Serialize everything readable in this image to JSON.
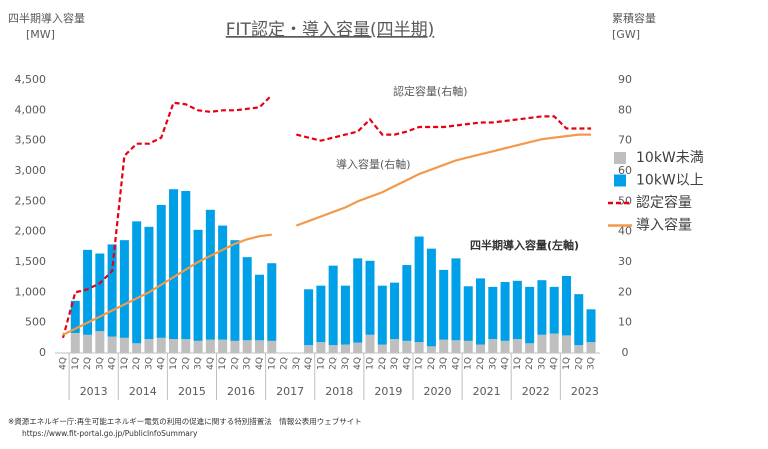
{
  "chart_data": {
    "type": "bar-line",
    "title": "FIT認定・導入容量(四半期)",
    "y_label": [
      "四半期導入容量",
      "[MW]"
    ],
    "y2_label": [
      "累積容量",
      "[GW]"
    ],
    "categories": [
      "4Q",
      "1Q",
      "2Q",
      "3Q",
      "4Q",
      "1Q",
      "2Q",
      "3Q",
      "4Q",
      "1Q",
      "2Q",
      "3Q",
      "4Q",
      "1Q",
      "2Q",
      "3Q",
      "4Q",
      "1Q",
      "2Q",
      "3Q",
      "4Q",
      "1Q",
      "2Q",
      "3Q",
      "4Q",
      "1Q",
      "2Q",
      "3Q",
      "4Q",
      "1Q",
      "2Q",
      "3Q",
      "4Q",
      "1Q",
      "2Q",
      "3Q",
      "4Q",
      "1Q",
      "2Q",
      "3Q",
      "4Q",
      "1Q",
      "2Q",
      "3Q"
    ],
    "years": [
      "2013",
      "2014",
      "2015",
      "2016",
      "2017",
      "2018",
      "2019",
      "2020",
      "2021",
      "2022",
      "2023"
    ],
    "ylim": [
      0,
      4500
    ],
    "yticks": [
      0,
      500,
      {
        "value": 1000,
        "label": "1,000"
      },
      {
        "value": 1500,
        "label": "1,500"
      },
      {
        "value": 2000,
        "label": "2,000"
      },
      {
        "value": 2500,
        "label": "2,500"
      },
      {
        "value": 3000,
        "label": "3,000"
      },
      {
        "value": 3500,
        "label": "3,500"
      },
      {
        "value": 4000,
        "label": "4,000"
      },
      {
        "value": 4500,
        "label": "4,500"
      }
    ],
    "y2lim": [
      0,
      90
    ],
    "y2ticks": [
      0,
      10,
      20,
      30,
      40,
      50,
      60,
      70,
      80,
      90
    ],
    "series": [
      {
        "name": "10kW未満",
        "kind": "bar",
        "color": "#bfbfbf",
        "values": [
          null,
          330,
          300,
          360,
          270,
          250,
          160,
          230,
          250,
          230,
          230,
          200,
          220,
          220,
          200,
          210,
          210,
          200,
          null,
          null,
          130,
          180,
          130,
          140,
          170,
          300,
          140,
          230,
          200,
          180,
          110,
          220,
          210,
          200,
          140,
          230,
          200,
          230,
          160,
          300,
          320,
          290,
          130,
          180
        ]
      },
      {
        "name": "10kW以上",
        "kind": "bar",
        "color": "#00a0e9",
        "values": [
          null,
          530,
          1400,
          1280,
          1520,
          1610,
          2010,
          1850,
          2190,
          2470,
          2440,
          1830,
          2140,
          1880,
          1660,
          1370,
          1080,
          1280,
          null,
          null,
          920,
          930,
          1310,
          970,
          1390,
          1220,
          970,
          930,
          1250,
          1740,
          1610,
          1150,
          1350,
          900,
          1090,
          860,
          970,
          960,
          930,
          900,
          770,
          980,
          840,
          540
        ]
      },
      {
        "name": "認定容量",
        "kind": "line",
        "dashed": true,
        "axis": "y2",
        "color": "#e60012",
        "values": [
          5,
          20,
          21,
          23,
          27,
          65,
          69,
          69,
          71,
          82.5,
          82,
          80,
          79.5,
          80,
          80,
          80.5,
          81,
          85,
          null,
          72,
          71,
          70,
          71,
          72,
          73,
          77,
          72,
          72,
          73,
          74.5,
          74.5,
          74.5,
          75,
          75.5,
          76,
          76,
          76.5,
          77,
          77.5,
          78,
          78,
          74,
          74,
          74
        ]
      },
      {
        "name": "導入容量",
        "kind": "line",
        "axis": "y2",
        "color": "#f29a4a",
        "values": [
          6,
          8,
          10,
          12,
          14,
          16,
          18,
          20,
          22.5,
          25,
          27.5,
          30,
          32,
          34,
          36,
          37.5,
          38.5,
          39,
          null,
          42,
          43.5,
          45,
          46.5,
          48,
          50,
          51.5,
          53,
          55,
          57,
          59,
          60.5,
          62,
          63.5,
          64.5,
          65.5,
          66.5,
          67.5,
          68.5,
          69.5,
          70.5,
          71,
          71.5,
          72,
          72
        ]
      }
    ],
    "annotations": [
      "認定容量(右軸)",
      "導入容量(右軸)",
      "四半期導入容量(左軸)"
    ],
    "footnote": [
      "※資源エネルギー庁:再生可能エネルギー電気の利用の促進に関する特別措置法　情報公表用ウェブサイト",
      "https://www.fit-portal.go.jp/PublicInfoSummary"
    ]
  }
}
